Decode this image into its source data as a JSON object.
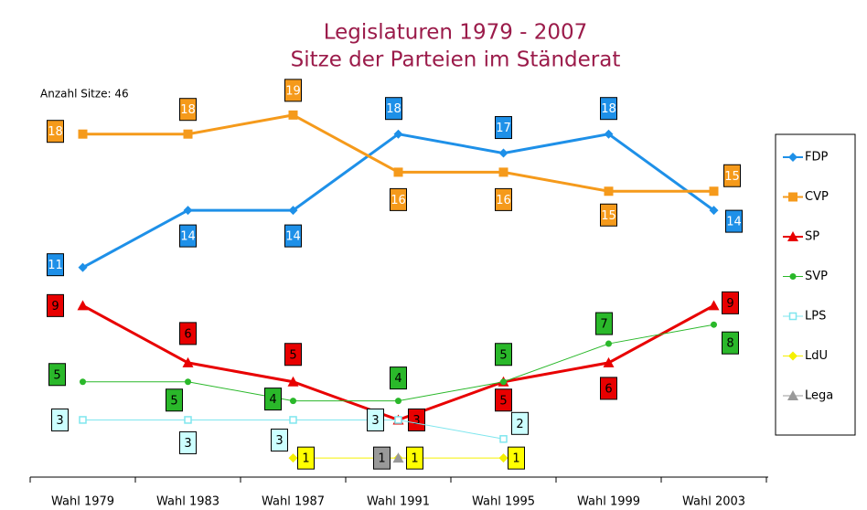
{
  "chart_data": {
    "type": "line",
    "title": "Legislaturen 1979 - 2007",
    "subtitle": "Sitze der Parteien im Ständerat",
    "annotation": "Anzahl Sitze: 46",
    "categories": [
      "Wahl 1979",
      "Wahl 1983",
      "Wahl 1987",
      "Wahl 1991",
      "Wahl 1995",
      "Wahl 1999",
      "Wahl 2003"
    ],
    "ylim": [
      0,
      20
    ],
    "series": [
      {
        "name": "FDP",
        "color": "#1e90e8",
        "values": [
          11,
          14,
          14,
          18,
          17,
          18,
          14
        ]
      },
      {
        "name": "CVP",
        "color": "#f59a1b",
        "values": [
          18,
          18,
          19,
          16,
          16,
          15,
          15
        ]
      },
      {
        "name": "SP",
        "color": "#e80000",
        "values": [
          9,
          6,
          5,
          3,
          5,
          6,
          9
        ]
      },
      {
        "name": "SVP",
        "color": "#2ab82a",
        "values": [
          5,
          5,
          4,
          4,
          5,
          7,
          8
        ]
      },
      {
        "name": "LPS",
        "color": "#7fe6ee",
        "values": [
          3,
          3,
          3,
          3,
          2,
          null,
          null
        ]
      },
      {
        "name": "LdU",
        "color": "#f5f000",
        "values": [
          null,
          null,
          1,
          1,
          1,
          null,
          null
        ]
      },
      {
        "name": "Lega",
        "color": "#999999",
        "values": [
          null,
          null,
          null,
          1,
          null,
          null,
          null
        ]
      }
    ]
  }
}
